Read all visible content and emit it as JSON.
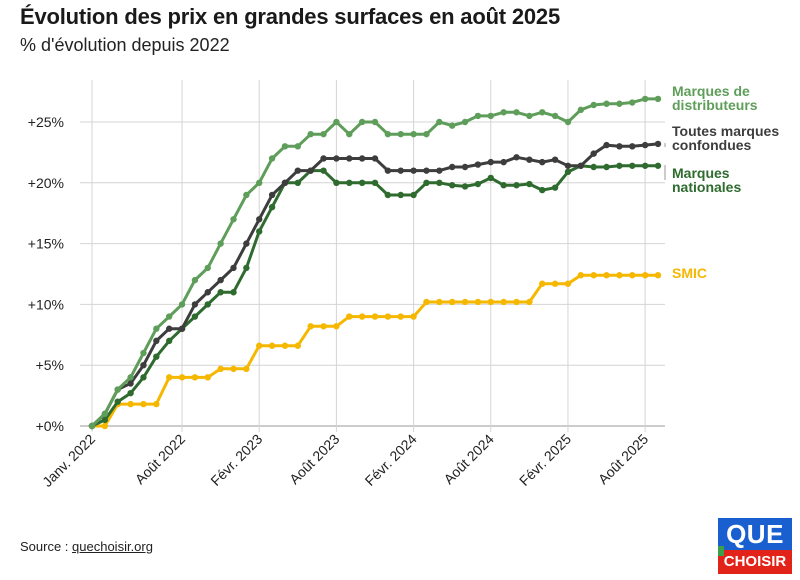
{
  "title": "Évolution des prix en grandes surfaces en août 2025",
  "subtitle": "% d'évolution depuis 2022",
  "source": {
    "prefix": "Source : ",
    "link": "quechoisir.org"
  },
  "logo": {
    "line1": "QUE",
    "line2": "CHOISIR"
  },
  "colors": {
    "distributeurs": "#5f9e5a",
    "confondues": "#3d3d3d",
    "nationales": "#2f6b2f",
    "smic": "#f5b700",
    "grid": "#d4d4d4",
    "axis": "#9a9a9a"
  },
  "chart_data": {
    "type": "line",
    "x_start": "2022-01",
    "x_ticks": [
      {
        "index": 0,
        "label": "Janv. 2022"
      },
      {
        "index": 7,
        "label": "Août 2022"
      },
      {
        "index": 13,
        "label": "Févr. 2023"
      },
      {
        "index": 19,
        "label": "Août 2023"
      },
      {
        "index": 25,
        "label": "Févr. 2024"
      },
      {
        "index": 31,
        "label": "Août 2024"
      },
      {
        "index": 37,
        "label": "Févr. 2025"
      },
      {
        "index": 43,
        "label": "Août 2025"
      }
    ],
    "y_ticks": [
      {
        "value": 0,
        "label": "+0%"
      },
      {
        "value": 5,
        "label": "+5%"
      },
      {
        "value": 10,
        "label": "+10%"
      },
      {
        "value": 15,
        "label": "+15%"
      },
      {
        "value": 20,
        "label": "+20%"
      },
      {
        "value": 25,
        "label": "+25%"
      }
    ],
    "ylim": [
      0,
      27
    ],
    "grid": true,
    "series": [
      {
        "id": "smic",
        "name": "SMIC",
        "color": "#f5b700",
        "label_lines": [
          "SMIC"
        ],
        "values": [
          0,
          0,
          1.8,
          1.8,
          1.8,
          1.8,
          4.0,
          4.0,
          4.0,
          4.0,
          4.7,
          4.7,
          4.7,
          6.6,
          6.6,
          6.6,
          6.6,
          8.2,
          8.2,
          8.2,
          9.0,
          9.0,
          9.0,
          9.0,
          9.0,
          9.0,
          10.2,
          10.2,
          10.2,
          10.2,
          10.2,
          10.2,
          10.2,
          10.2,
          10.2,
          11.7,
          11.7,
          11.7,
          12.4,
          12.4,
          12.4,
          12.4,
          12.4,
          12.4,
          12.4
        ]
      },
      {
        "id": "nationales",
        "name": "Marques nationales",
        "color": "#2f6b2f",
        "label_lines": [
          "Marques",
          "nationales"
        ],
        "values": [
          0,
          0.5,
          2.0,
          2.7,
          4.0,
          5.7,
          7.0,
          8.0,
          9.0,
          10.0,
          11.0,
          11.0,
          13.0,
          16.0,
          18.0,
          20.0,
          20.0,
          21.0,
          21.0,
          20.0,
          20.0,
          20.0,
          20.0,
          19.0,
          19.0,
          19.0,
          20.0,
          20.0,
          19.8,
          19.7,
          19.9,
          20.4,
          19.8,
          19.8,
          19.9,
          19.4,
          19.6,
          20.9,
          21.4,
          21.3,
          21.3,
          21.4,
          21.4,
          21.4,
          21.4
        ]
      },
      {
        "id": "confondues",
        "name": "Toutes marques confondues",
        "color": "#3d3d3d",
        "label_lines": [
          "Toutes marques",
          "confondues"
        ],
        "values": [
          0,
          1.0,
          3.0,
          3.5,
          5.0,
          7.0,
          8.0,
          8.0,
          10.0,
          11.0,
          12.0,
          13.0,
          15.0,
          17.0,
          19.0,
          20.0,
          21.0,
          21.0,
          22.0,
          22.0,
          22.0,
          22.0,
          22.0,
          21.0,
          21.0,
          21.0,
          21.0,
          21.0,
          21.3,
          21.3,
          21.5,
          21.7,
          21.7,
          22.1,
          21.9,
          21.7,
          21.9,
          21.4,
          21.4,
          22.4,
          23.1,
          23.0,
          23.0,
          23.1,
          23.2
        ]
      },
      {
        "id": "distributeurs",
        "name": "Marques de distributeurs",
        "color": "#5f9e5a",
        "label_lines": [
          "Marques de",
          "distributeurs"
        ],
        "values": [
          0,
          1.0,
          3.0,
          4.0,
          6.0,
          8.0,
          9.0,
          10.0,
          12.0,
          13.0,
          15.0,
          17.0,
          19.0,
          20.0,
          22.0,
          23.0,
          23.0,
          24.0,
          24.0,
          25.0,
          24.0,
          25.0,
          25.0,
          24.0,
          24.0,
          24.0,
          24.0,
          25.0,
          24.7,
          25.0,
          25.5,
          25.5,
          25.8,
          25.8,
          25.5,
          25.8,
          25.5,
          25.0,
          26.0,
          26.4,
          26.5,
          26.5,
          26.6,
          26.9,
          26.9
        ]
      }
    ]
  }
}
